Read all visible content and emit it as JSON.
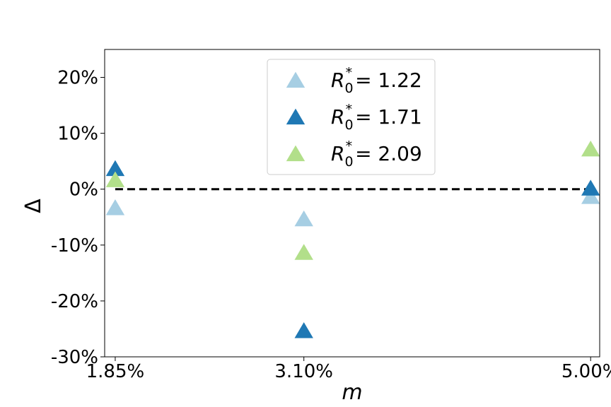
{
  "chart_data": {
    "type": "scatter",
    "title": "",
    "xlabel": "m",
    "ylabel": "Δ",
    "x_categories": [
      "1.85%",
      "3.10%",
      "5.00%"
    ],
    "x_values": [
      1.85,
      3.1,
      5.0
    ],
    "xlim": [
      1.78,
      5.06
    ],
    "ylim": [
      -30,
      25
    ],
    "yticks": [
      -30,
      -20,
      -10,
      0,
      10,
      20
    ],
    "ytick_labels": [
      "-30%",
      "-20%",
      "-10%",
      "0%",
      "10%",
      "20%"
    ],
    "reference_line": {
      "y": 0,
      "style": "dashed",
      "color": "#000000",
      "from_x": 1.85,
      "to_x": 5.0
    },
    "legend_position": "top-center",
    "series": [
      {
        "name_prefix": "R",
        "name_sub": "0",
        "name_sup": "*",
        "name_value": "= 1.22",
        "color": "#a6cee3",
        "marker": "triangle",
        "y": [
          -3.5,
          -5.5,
          -1.5
        ]
      },
      {
        "name_prefix": "R",
        "name_sub": "0",
        "name_sup": "*",
        "name_value": "= 1.71",
        "color": "#1f78b4",
        "marker": "triangle",
        "y": [
          3.5,
          -25.5,
          0
        ]
      },
      {
        "name_prefix": "R",
        "name_sub": "0",
        "name_sup": "*",
        "name_value": "= 2.09",
        "color": "#b2df8a",
        "marker": "triangle",
        "y": [
          1.5,
          -11.5,
          7
        ]
      }
    ]
  }
}
